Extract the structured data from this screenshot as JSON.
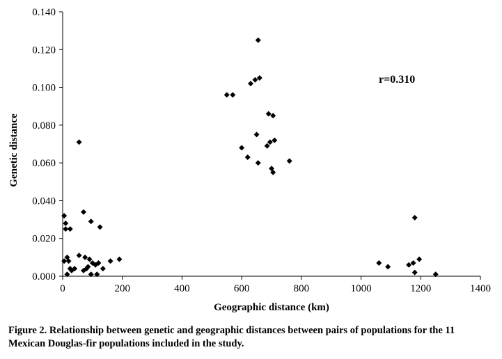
{
  "chart_data": {
    "type": "scatter",
    "xlabel": "Geographic distance (km)",
    "ylabel": "Genetic distance",
    "xlim": [
      0,
      1400
    ],
    "ylim": [
      0,
      0.14
    ],
    "x_ticks": [
      0,
      200,
      400,
      600,
      800,
      1000,
      1200,
      1400
    ],
    "x_tick_labels": [
      "0",
      "200",
      "400",
      "600",
      "800",
      "1000",
      "1200",
      "1400"
    ],
    "y_ticks": [
      0,
      0.02,
      0.04,
      0.06,
      0.08,
      0.1,
      0.12,
      0.14
    ],
    "y_tick_labels": [
      "0.000",
      "0.020",
      "0.040",
      "0.060",
      "0.080",
      "0.100",
      "0.120",
      "0.140"
    ],
    "annotation": "r=0.310",
    "grid": false,
    "marker": "diamond",
    "marker_color": "#000000",
    "points": [
      [
        5,
        0.032
      ],
      [
        10,
        0.028
      ],
      [
        10,
        0.025
      ],
      [
        25,
        0.025
      ],
      [
        5,
        0.008
      ],
      [
        15,
        0.01
      ],
      [
        20,
        0.008
      ],
      [
        15,
        0.001
      ],
      [
        25,
        0.004
      ],
      [
        30,
        0.003
      ],
      [
        40,
        0.004
      ],
      [
        55,
        0.071
      ],
      [
        70,
        0.034
      ],
      [
        55,
        0.011
      ],
      [
        70,
        0.003
      ],
      [
        75,
        0.01
      ],
      [
        80,
        0.004
      ],
      [
        90,
        0.009
      ],
      [
        85,
        0.005
      ],
      [
        95,
        0.029
      ],
      [
        100,
        0.007
      ],
      [
        95,
        0.001
      ],
      [
        110,
        0.006
      ],
      [
        115,
        0.001
      ],
      [
        120,
        0.007
      ],
      [
        125,
        0.026
      ],
      [
        135,
        0.004
      ],
      [
        160,
        0.008
      ],
      [
        190,
        0.009
      ],
      [
        550,
        0.096
      ],
      [
        570,
        0.096
      ],
      [
        600,
        0.068
      ],
      [
        620,
        0.063
      ],
      [
        630,
        0.102
      ],
      [
        645,
        0.104
      ],
      [
        655,
        0.125
      ],
      [
        660,
        0.105
      ],
      [
        650,
        0.075
      ],
      [
        655,
        0.06
      ],
      [
        685,
        0.069
      ],
      [
        690,
        0.086
      ],
      [
        705,
        0.085
      ],
      [
        695,
        0.071
      ],
      [
        710,
        0.072
      ],
      [
        700,
        0.057
      ],
      [
        705,
        0.055
      ],
      [
        760,
        0.061
      ],
      [
        1060,
        0.007
      ],
      [
        1090,
        0.005
      ],
      [
        1160,
        0.006
      ],
      [
        1175,
        0.007
      ],
      [
        1180,
        0.031
      ],
      [
        1180,
        0.002
      ],
      [
        1195,
        0.009
      ],
      [
        1250,
        0.001
      ]
    ]
  },
  "caption": {
    "line1": "Figure 2. Relationship between genetic and geographic distances between pairs of populations for the 11",
    "line2": "Mexican Douglas-fir populations included in the study."
  }
}
